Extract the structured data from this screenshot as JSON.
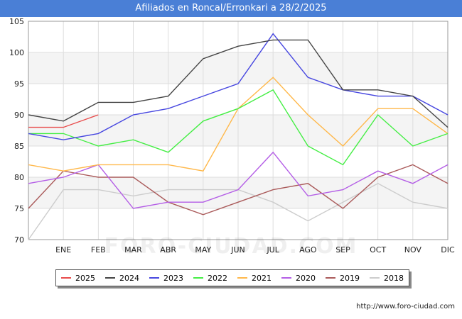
{
  "title": "Afiliados en Roncal/Erronkari a 28/2/2025",
  "footer": "http://www.foro-ciudad.com",
  "watermark": "FORO-CIUDAD.COM",
  "chart_data": {
    "type": "line",
    "categories": [
      "",
      "ENE",
      "FEB",
      "MAR",
      "ABR",
      "MAY",
      "JUN",
      "JUL",
      "AGO",
      "SEP",
      "OCT",
      "NOV",
      "DIC"
    ],
    "ylim": [
      70,
      105
    ],
    "yticks": [
      70,
      75,
      80,
      85,
      90,
      95,
      100,
      105
    ],
    "grid": true,
    "legend_position": "bottom",
    "series": [
      {
        "name": "2025",
        "color": "#e84a4a",
        "values": [
          88,
          88,
          90,
          null,
          null,
          null,
          null,
          null,
          null,
          null,
          null,
          null,
          null
        ]
      },
      {
        "name": "2024",
        "color": "#444444",
        "values": [
          90,
          89,
          92,
          92,
          93,
          99,
          101,
          102,
          102,
          94,
          94,
          93,
          88
        ]
      },
      {
        "name": "2023",
        "color": "#4747e0",
        "values": [
          87,
          86,
          87,
          90,
          91,
          93,
          95,
          103,
          96,
          94,
          93,
          93,
          90
        ]
      },
      {
        "name": "2022",
        "color": "#44ee44",
        "values": [
          87,
          87,
          85,
          86,
          84,
          89,
          91,
          94,
          85,
          82,
          90,
          85,
          87
        ]
      },
      {
        "name": "2021",
        "color": "#ffb84a",
        "values": [
          82,
          81,
          82,
          82,
          82,
          81,
          91,
          96,
          90,
          85,
          91,
          91,
          87
        ]
      },
      {
        "name": "2020",
        "color": "#b45ee6",
        "values": [
          79,
          80,
          82,
          75,
          76,
          76,
          78,
          84,
          77,
          78,
          81,
          79,
          82
        ]
      },
      {
        "name": "2019",
        "color": "#aa5a5a",
        "values": [
          75,
          81,
          80,
          80,
          76,
          74,
          76,
          78,
          79,
          75,
          80,
          82,
          79
        ]
      },
      {
        "name": "2018",
        "color": "#cccccc",
        "values": [
          70,
          78,
          78,
          77,
          78,
          78,
          78,
          76,
          73,
          76,
          79,
          76,
          75
        ]
      }
    ]
  }
}
